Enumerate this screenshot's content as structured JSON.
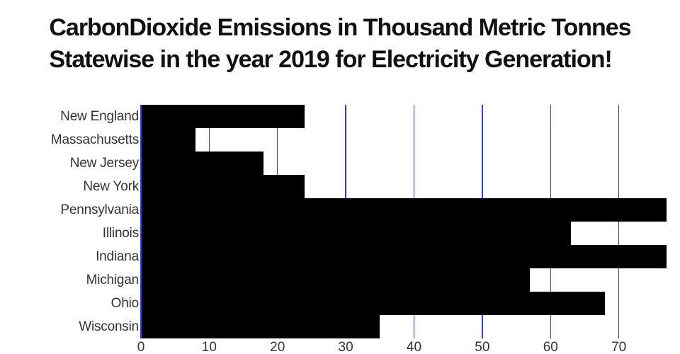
{
  "page": {
    "background": "#ffffff"
  },
  "chart_data": {
    "type": "bar",
    "orientation": "horizontal",
    "title": "CarbonDioxide Emissions in Thousand Metric Tonnes Statewise in the year 2019 for Electricity Generation!",
    "title_lines": {
      "line1": "CarbonDioxide Emissions in Thousand Metric Tonnes",
      "line2": "Statewise in the year 2019 for Electricity Generation!"
    },
    "categories": [
      "New England",
      "Massachusetts",
      "New Jersey",
      "New York",
      "Pennsylvania",
      "Illinois",
      "Indiana",
      "Michigan",
      "Ohio",
      "Wisconsin"
    ],
    "values": [
      24,
      8,
      18,
      24,
      77,
      63,
      77,
      57,
      68,
      35
    ],
    "x_ticks": [
      0,
      10,
      20,
      30,
      40,
      50,
      60,
      70
    ],
    "xlim": [
      0,
      77.3
    ],
    "xlabel": "",
    "ylabel": "",
    "grid": true,
    "grid_orientation": "vertical",
    "legend": false,
    "bar_gap": 0,
    "colors": {
      "bar": "#000000",
      "gridline": "#3333ff",
      "tick_label": "#333333",
      "title": "#111111",
      "background": "#ffffff"
    }
  }
}
